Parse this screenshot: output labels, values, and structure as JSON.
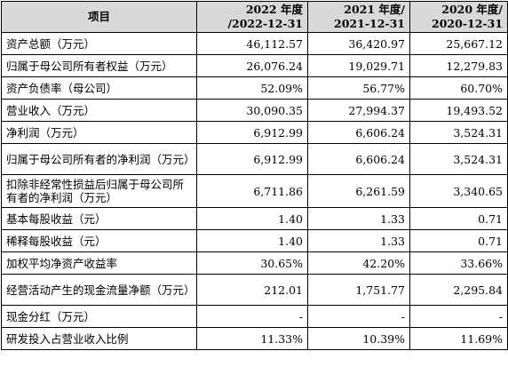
{
  "header": {
    "item": "项目",
    "periods": [
      {
        "line1": "2022 年度",
        "line2": "/2022-12-31"
      },
      {
        "line1": "2021 年度/",
        "line2": "2021-12-31"
      },
      {
        "line1": "2020 年度/",
        "line2": "2020-12-31"
      }
    ]
  },
  "rows": [
    {
      "label": "资产总额（万元）",
      "v": [
        "46,112.57",
        "36,420.97",
        "25,667.12"
      ]
    },
    {
      "label": "归属于母公司所有者权益（万元）",
      "v": [
        "26,076.24",
        "19,029.71",
        "12,279.83"
      ]
    },
    {
      "label": "资产负债率（母公司）",
      "v": [
        "52.09%",
        "56.77%",
        "60.70%"
      ]
    },
    {
      "label": "营业收入（万元）",
      "v": [
        "30,090.35",
        "27,994.37",
        "19,493.52"
      ]
    },
    {
      "label": "净利润（万元）",
      "v": [
        "6,912.99",
        "6,606.24",
        "3,524.31"
      ]
    },
    {
      "label": "归属于母公司所有者的净利润（万元）",
      "v": [
        "6,912.99",
        "6,606.24",
        "3,524.31"
      ]
    },
    {
      "label": "扣除非经常性损益后归属于母公司所有者的净利润（万元）",
      "v": [
        "6,711.86",
        "6,261.59",
        "3,340.65"
      ]
    },
    {
      "label": "基本每股收益（元）",
      "v": [
        "1.40",
        "1.33",
        "0.71"
      ]
    },
    {
      "label": "稀释每股收益（元）",
      "v": [
        "1.40",
        "1.33",
        "0.71"
      ]
    },
    {
      "label": "加权平均净资产收益率",
      "v": [
        "30.65%",
        "42.20%",
        "33.66%"
      ]
    },
    {
      "label": "经营活动产生的现金流量净额（万元）",
      "v": [
        "212.01",
        "1,751.77",
        "2,295.84"
      ]
    },
    {
      "label": "现金分红（万元）",
      "v": [
        "-",
        "-",
        "-"
      ]
    },
    {
      "label": "研发投入占营业收入比例",
      "v": [
        "11.33%",
        "10.39%",
        "11.69%"
      ]
    }
  ]
}
